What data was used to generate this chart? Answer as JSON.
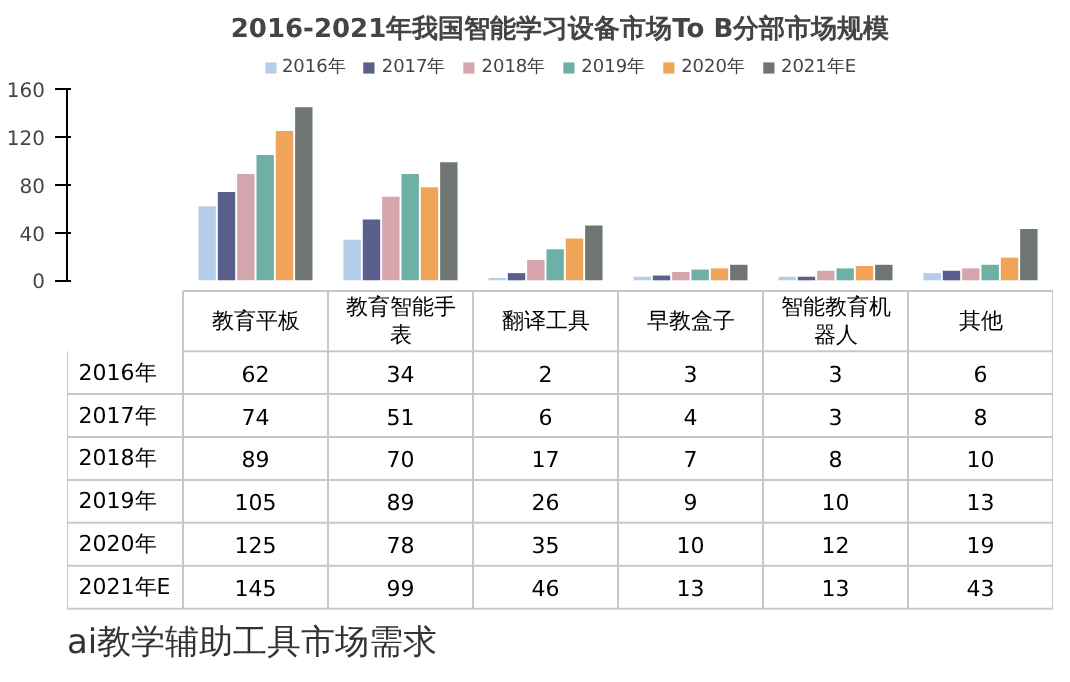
{
  "chart_data": {
    "type": "bar",
    "title": "2016-2021年我国智能学习设备市场To B分部市场规模",
    "categories": [
      "教育平板",
      "教育智能手表",
      "翻译工具",
      "早教盒子",
      "智能教育机器人",
      "其他"
    ],
    "series": [
      {
        "name": "2016年",
        "color": "#b4cde8",
        "values": [
          62,
          34,
          2,
          3,
          3,
          6
        ]
      },
      {
        "name": "2017年",
        "color": "#5a5f8c",
        "values": [
          74,
          51,
          6,
          4,
          3,
          8
        ]
      },
      {
        "name": "2018年",
        "color": "#d4a5ad",
        "values": [
          89,
          70,
          17,
          7,
          8,
          10
        ]
      },
      {
        "name": "2019年",
        "color": "#6fb0a6",
        "values": [
          105,
          89,
          26,
          9,
          10,
          13
        ]
      },
      {
        "name": "2020年",
        "color": "#f0a45a",
        "values": [
          125,
          78,
          35,
          10,
          12,
          19
        ]
      },
      {
        "name": "2021年E",
        "color": "#6e7572",
        "values": [
          145,
          99,
          46,
          13,
          13,
          43
        ]
      }
    ],
    "ylim": [
      0,
      160
    ],
    "yticks": [
      0,
      40,
      80,
      120,
      160
    ],
    "grid": false,
    "legend": "top",
    "data_labels": true,
    "annotations": [
      "ai教学辅助工具市场需求"
    ]
  }
}
